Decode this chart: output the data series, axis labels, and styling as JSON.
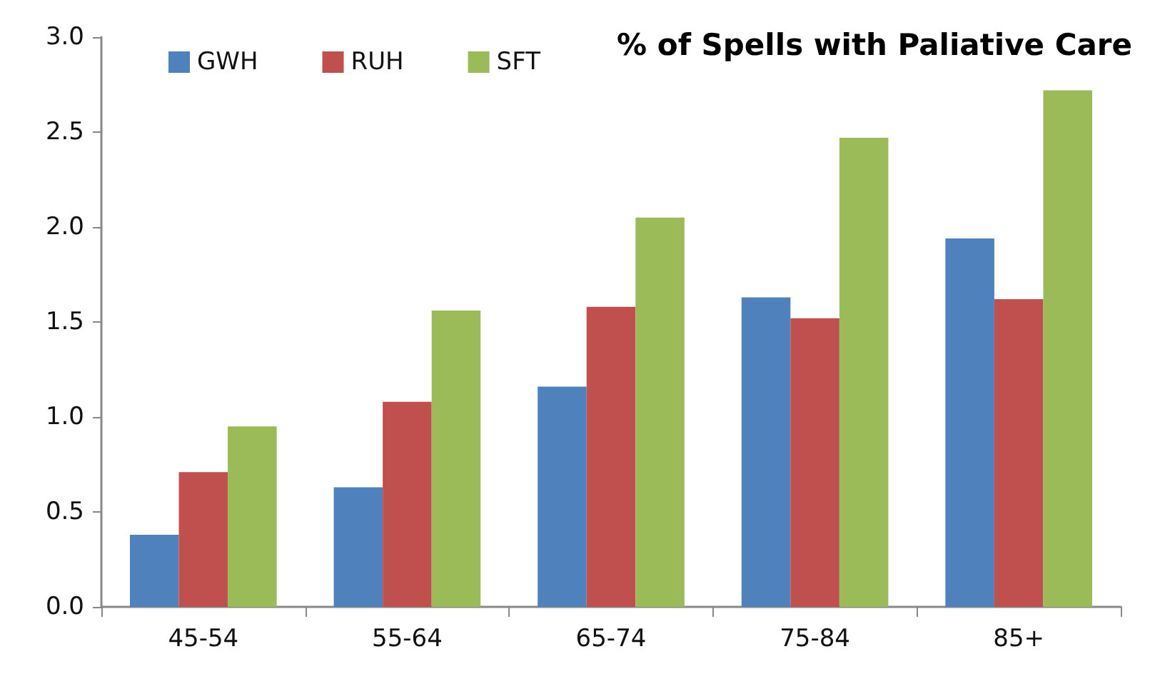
{
  "chart_data": {
    "type": "bar",
    "title": "% of Spells with Paliative Care",
    "categories": [
      "45-54",
      "55-64",
      "65-74",
      "75-84",
      "85+"
    ],
    "series": [
      {
        "name": "GWH",
        "color": "#4f81bd",
        "values": [
          0.38,
          0.63,
          1.16,
          1.63,
          1.94
        ]
      },
      {
        "name": "RUH",
        "color": "#c0504d",
        "values": [
          0.71,
          1.08,
          1.58,
          1.52,
          1.62
        ]
      },
      {
        "name": "SFT",
        "color": "#9bbb59",
        "values": [
          0.95,
          1.56,
          2.05,
          2.47,
          2.72
        ]
      }
    ],
    "ylim": [
      0,
      3
    ],
    "yticks": [
      {
        "value": 0,
        "label": "0.0"
      },
      0.5,
      {
        "value": 1,
        "label": "1.0"
      },
      1.5,
      {
        "value": 2,
        "label": "2.0"
      },
      2.5,
      {
        "value": 3,
        "label": "3.0"
      }
    ],
    "grid": false,
    "legend": "top left"
  }
}
